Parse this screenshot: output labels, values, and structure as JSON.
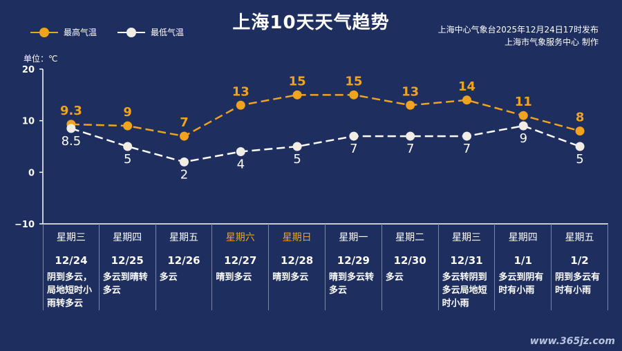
{
  "title": "上海10天天气趋势",
  "legend": {
    "high": "最高气温",
    "low": "最低气温"
  },
  "source": {
    "line1": "上海中心气象台2025年12月24日17时发布",
    "line2": "上海市气象服务中心  制作"
  },
  "unit_label": "单位：℃",
  "colors": {
    "background": "#1e2e5e",
    "high": "#f0a31e",
    "low": "#ffffff",
    "weekend": "#f0a31e"
  },
  "chart_data": {
    "type": "line",
    "title": "上海10天天气趋势",
    "categories": [
      "12/24",
      "12/25",
      "12/26",
      "12/27",
      "12/28",
      "12/29",
      "12/30",
      "12/31",
      "1/1",
      "1/2"
    ],
    "series": [
      {
        "name": "最高气温",
        "values": [
          9.3,
          9,
          7,
          13,
          15,
          15,
          13,
          14,
          11,
          8
        ]
      },
      {
        "name": "最低气温",
        "values": [
          8.5,
          5,
          2,
          4,
          5,
          7,
          7,
          7,
          9,
          5
        ]
      }
    ],
    "ylim": [
      -10,
      20
    ],
    "yticks": [
      "20",
      "10",
      "0",
      "−10"
    ],
    "ylabel": "单位：℃",
    "xlabel": "",
    "line_style": "dashed"
  },
  "days": [
    {
      "weekday": "星期三",
      "date": "12/24",
      "weather": "阴到多云，局地短时小雨转多云",
      "weekend": false
    },
    {
      "weekday": "星期四",
      "date": "12/25",
      "weather": "多云到晴转多云",
      "weekend": false
    },
    {
      "weekday": "星期五",
      "date": "12/26",
      "weather": "多云",
      "weekend": false
    },
    {
      "weekday": "星期六",
      "date": "12/27",
      "weather": "晴到多云",
      "weekend": true
    },
    {
      "weekday": "星期日",
      "date": "12/28",
      "weather": "晴到多云",
      "weekend": true
    },
    {
      "weekday": "星期一",
      "date": "12/29",
      "weather": "晴到多云转多云",
      "weekend": false
    },
    {
      "weekday": "星期二",
      "date": "12/30",
      "weather": "多云",
      "weekend": false
    },
    {
      "weekday": "星期三",
      "date": "12/31",
      "weather": "多云转阴到多云局地短时小雨",
      "weekend": false
    },
    {
      "weekday": "星期四",
      "date": "1/1",
      "weather": "多云到阴有时有小雨",
      "weekend": false
    },
    {
      "weekday": "星期五",
      "date": "1/2",
      "weather": "阴到多云有时有小雨",
      "weekend": false
    }
  ],
  "watermark": "www.365jz.com"
}
